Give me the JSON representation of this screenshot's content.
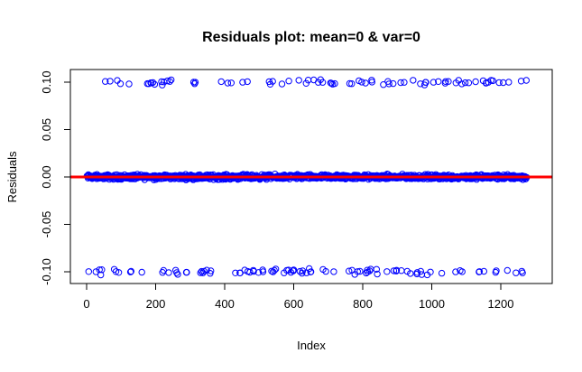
{
  "chart_data": {
    "type": "scatter",
    "title": "Residuals plot: mean=0 & var=0",
    "xlabel": "Index",
    "ylabel": "Residuals",
    "xlim": [
      0,
      1275
    ],
    "ylim": [
      -0.112,
      0.112
    ],
    "x_ticks": [
      0,
      200,
      400,
      600,
      800,
      1000,
      1200
    ],
    "y_ticks": [
      -0.1,
      -0.05,
      0.0,
      0.05,
      0.1
    ],
    "x_tick_labels": [
      "0",
      "200",
      "400",
      "600",
      "800",
      "1000",
      "1200"
    ],
    "y_tick_labels": [
      "-0.10",
      "-0.05",
      "0.00",
      "0.05",
      "0.10"
    ],
    "n_points": 1275,
    "point_groups": [
      {
        "residual_level": 0.1,
        "count": 85
      },
      {
        "residual_level": 0.0,
        "count": 1105
      },
      {
        "residual_level": -0.1,
        "count": 85
      }
    ],
    "reference_line": {
      "y": 0,
      "color": "#ff0000"
    },
    "point_color": "#0000ff",
    "marker": "open-circle",
    "grid": false,
    "legend": "none"
  }
}
